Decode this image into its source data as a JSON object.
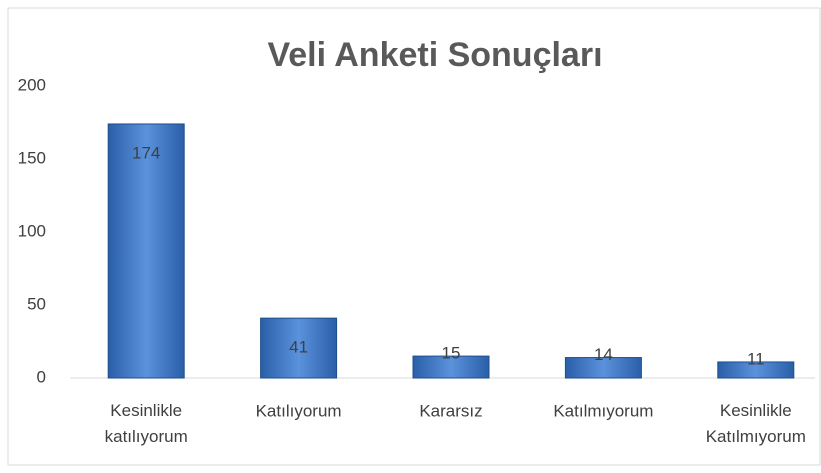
{
  "chart_data": {
    "type": "bar",
    "title": "Veli  Anketi Sonuçları",
    "categories": [
      "Kesinlikle katılıyorum",
      "Katılıyorum",
      "Kararsız",
      "Katılmıyorum",
      "Kesinlikle Katılmıyorum"
    ],
    "values": [
      174,
      41,
      15,
      14,
      11
    ],
    "color": "#3f77c3",
    "ylim": [
      0,
      200
    ],
    "yticks": [
      0,
      50,
      100,
      150,
      200
    ],
    "grid": false
  }
}
